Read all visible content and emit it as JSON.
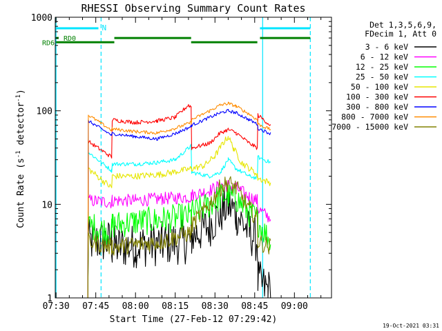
{
  "chart_data": {
    "type": "line",
    "title": "RHESSI Observing Summary Count Rates",
    "xlabel": "Start Time (27-Feb-12 07:29:42)",
    "ylabel_main": "Count Rate (s",
    "ylabel_sup1": "-1",
    "ylabel_mid": " detector",
    "ylabel_sup2": "-1",
    "ylabel_end": ")",
    "yscale": "log",
    "ylim": [
      1,
      1000
    ],
    "xlim": [
      "07:29:42",
      "09:14:00"
    ],
    "x_ticks": [
      {
        "t": "07:30",
        "label": "07:30"
      },
      {
        "t": "07:45",
        "label": "07:45"
      },
      {
        "t": "08:00",
        "label": "08:00"
      },
      {
        "t": "08:15",
        "label": "08:15"
      },
      {
        "t": "08:30",
        "label": "08:30"
      },
      {
        "t": "08:45",
        "label": "08:45"
      },
      {
        "t": "09:00",
        "label": "09:00"
      }
    ],
    "y_ticks": [
      {
        "v": 1,
        "label": "1"
      },
      {
        "v": 10,
        "label": "10"
      },
      {
        "v": 100,
        "label": "100"
      },
      {
        "v": 1000,
        "label": "1000"
      }
    ],
    "legend_header": [
      "Det 1,3,5,6,9,",
      "FDecim 1, Att 0"
    ],
    "legend_position": "right",
    "timestamp": "19-Oct-2021 03:31",
    "night_markers": {
      "color": "#00e5ff",
      "solid_times": [
        "07:30",
        "08:48"
      ],
      "dashed_times": [
        "07:47",
        "09:06"
      ],
      "bars": [
        {
          "from": "07:30",
          "to": "07:46",
          "label": "N"
        },
        {
          "from": "08:47",
          "to": "09:06",
          "label": ""
        }
      ]
    },
    "decim_bars": {
      "color": "#008000",
      "labels": [
        {
          "text": "RD0",
          "value": 600
        },
        {
          "text": "RD6",
          "value": 540
        }
      ],
      "rd0_segments": [
        {
          "from": "07:30",
          "to": "07:31"
        },
        {
          "from": "07:52",
          "to": "08:21"
        },
        {
          "from": "08:47",
          "to": "09:06"
        }
      ],
      "rd6_segments": [
        {
          "from": "07:30",
          "to": "07:52"
        },
        {
          "from": "08:21",
          "to": "08:46"
        }
      ]
    },
    "series": [
      {
        "name": "3 - 6 keV",
        "color": "#000000",
        "noise": 0.55,
        "points": [
          [
            "07:42",
            0
          ],
          [
            "07:42.2",
            4.0
          ],
          [
            "07:51",
            4.0
          ],
          [
            "07:51.2",
            3.5
          ],
          [
            "08:00",
            3.6
          ],
          [
            "08:10",
            3.8
          ],
          [
            "08:21",
            4.0
          ],
          [
            "08:21.2",
            4.5
          ],
          [
            "08:28",
            6.0
          ],
          [
            "08:32",
            8.0
          ],
          [
            "08:35",
            10.0
          ],
          [
            "08:38",
            8.0
          ],
          [
            "08:43",
            5.0
          ],
          [
            "08:46",
            4.0
          ],
          [
            "08:46.2",
            1.5
          ],
          [
            "08:50",
            1.2
          ],
          [
            "08:51",
            0
          ]
        ]
      },
      {
        "name": "6 - 12 keV",
        "color": "#ff00ff",
        "noise": 0.16,
        "points": [
          [
            "07:42",
            0
          ],
          [
            "07:42.2",
            11.0
          ],
          [
            "07:51",
            10.5
          ],
          [
            "07:51.2",
            11.0
          ],
          [
            "08:00",
            11.0
          ],
          [
            "08:10",
            11.5
          ],
          [
            "08:21",
            12.0
          ],
          [
            "08:21.2",
            12.5
          ],
          [
            "08:28",
            14.0
          ],
          [
            "08:32",
            16.0
          ],
          [
            "08:35",
            16.0
          ],
          [
            "08:38",
            15.0
          ],
          [
            "08:43",
            12.0
          ],
          [
            "08:46",
            11.0
          ],
          [
            "08:46.2",
            9.0
          ],
          [
            "08:51",
            7.0
          ]
        ]
      },
      {
        "name": "12 - 25 keV",
        "color": "#00ff00",
        "noise": 0.35,
        "points": [
          [
            "07:42",
            0
          ],
          [
            "07:42.2",
            6.0
          ],
          [
            "07:51",
            5.0
          ],
          [
            "07:51.2",
            6.0
          ],
          [
            "08:00",
            6.5
          ],
          [
            "08:10",
            6.8
          ],
          [
            "08:21",
            7.5
          ],
          [
            "08:21.2",
            8.0
          ],
          [
            "08:28",
            10.0
          ],
          [
            "08:32",
            12.0
          ],
          [
            "08:35",
            12.5
          ],
          [
            "08:38",
            11.5
          ],
          [
            "08:43",
            8.0
          ],
          [
            "08:46",
            7.0
          ],
          [
            "08:46.2",
            6.5
          ],
          [
            "08:51",
            4.0
          ]
        ]
      },
      {
        "name": "25 - 50 keV",
        "color": "#00ffff",
        "noise": 0.05,
        "points": [
          [
            "07:42",
            0
          ],
          [
            "07:42.2",
            36.0
          ],
          [
            "07:51",
            23.0
          ],
          [
            "07:51.2",
            27.0
          ],
          [
            "08:00",
            27.0
          ],
          [
            "08:08",
            28.0
          ],
          [
            "08:15",
            30.0
          ],
          [
            "08:20",
            40.0
          ],
          [
            "08:21",
            42.0
          ],
          [
            "08:21.2",
            22.0
          ],
          [
            "08:28",
            20.0
          ],
          [
            "08:32",
            22.0
          ],
          [
            "08:35",
            30.0
          ],
          [
            "08:38",
            24.0
          ],
          [
            "08:43",
            20.0
          ],
          [
            "08:46",
            19.0
          ],
          [
            "08:46.2",
            32.0
          ],
          [
            "08:51",
            28.0
          ]
        ]
      },
      {
        "name": "50 - 100 keV",
        "color": "#e6e600",
        "noise": 0.08,
        "points": [
          [
            "07:42",
            0
          ],
          [
            "07:42.2",
            24.0
          ],
          [
            "07:51",
            15.0
          ],
          [
            "07:51.2",
            20.0
          ],
          [
            "08:00",
            20.0
          ],
          [
            "08:10",
            21.0
          ],
          [
            "08:21",
            24.0
          ],
          [
            "08:21.2",
            24.0
          ],
          [
            "08:26",
            26.0
          ],
          [
            "08:30",
            33.0
          ],
          [
            "08:33",
            45.0
          ],
          [
            "08:35",
            53.0
          ],
          [
            "08:37",
            40.0
          ],
          [
            "08:40",
            28.0
          ],
          [
            "08:45",
            22.0
          ],
          [
            "08:46",
            20.0
          ],
          [
            "08:46.2",
            19.0
          ],
          [
            "08:51",
            17.0
          ]
        ]
      },
      {
        "name": "100 - 300 keV",
        "color": "#ff0000",
        "noise": 0.05,
        "points": [
          [
            "07:42",
            0
          ],
          [
            "07:42.2",
            47.0
          ],
          [
            "07:51",
            32.0
          ],
          [
            "07:51.2",
            80.0
          ],
          [
            "08:00",
            75.0
          ],
          [
            "08:08",
            78.0
          ],
          [
            "08:15",
            85.0
          ],
          [
            "08:20",
            115.0
          ],
          [
            "08:21",
            110.0
          ],
          [
            "08:21.2",
            40.0
          ],
          [
            "08:28",
            45.0
          ],
          [
            "08:32",
            58.0
          ],
          [
            "08:35",
            63.0
          ],
          [
            "08:38",
            58.0
          ],
          [
            "08:43",
            45.0
          ],
          [
            "08:46",
            40.0
          ],
          [
            "08:46.2",
            90.0
          ],
          [
            "08:51",
            70.0
          ]
        ]
      },
      {
        "name": "300 - 800 keV",
        "color": "#0000ff",
        "noise": 0.04,
        "points": [
          [
            "07:42",
            0
          ],
          [
            "07:42.2",
            78.0
          ],
          [
            "07:51",
            55.0
          ],
          [
            "07:51.2",
            57.0
          ],
          [
            "08:00",
            53.0
          ],
          [
            "08:08",
            50.0
          ],
          [
            "08:15",
            57.0
          ],
          [
            "08:21",
            68.0
          ],
          [
            "08:21.2",
            70.0
          ],
          [
            "08:28",
            85.0
          ],
          [
            "08:32",
            95.0
          ],
          [
            "08:35",
            100.0
          ],
          [
            "08:38",
            95.0
          ],
          [
            "08:43",
            80.0
          ],
          [
            "08:46",
            72.0
          ],
          [
            "08:46.2",
            65.0
          ],
          [
            "08:51",
            57.0
          ]
        ]
      },
      {
        "name": "800 - 7000 keV",
        "color": "#ff8c00",
        "noise": 0.04,
        "points": [
          [
            "07:42",
            0
          ],
          [
            "07:42.2",
            90.0
          ],
          [
            "07:51",
            62.0
          ],
          [
            "07:51.2",
            64.0
          ],
          [
            "08:00",
            60.0
          ],
          [
            "08:08",
            58.0
          ],
          [
            "08:15",
            65.0
          ],
          [
            "08:21",
            75.0
          ],
          [
            "08:21.2",
            80.0
          ],
          [
            "08:28",
            100.0
          ],
          [
            "08:32",
            115.0
          ],
          [
            "08:35",
            120.0
          ],
          [
            "08:38",
            112.0
          ],
          [
            "08:43",
            92.0
          ],
          [
            "08:46",
            80.0
          ],
          [
            "08:46.2",
            72.0
          ],
          [
            "08:51",
            63.0
          ]
        ]
      },
      {
        "name": "7000 - 15000 keV",
        "color": "#808000",
        "noise": 0.22,
        "points": [
          [
            "07:42",
            0
          ],
          [
            "07:42.2",
            4.0
          ],
          [
            "07:51",
            3.5
          ],
          [
            "07:51.2",
            3.5
          ],
          [
            "08:00",
            3.7
          ],
          [
            "08:10",
            4.0
          ],
          [
            "08:21",
            5.0
          ],
          [
            "08:21.2",
            6.0
          ],
          [
            "08:28",
            10.0
          ],
          [
            "08:32",
            15.0
          ],
          [
            "08:35",
            17.0
          ],
          [
            "08:38",
            15.0
          ],
          [
            "08:43",
            9.0
          ],
          [
            "08:46",
            7.0
          ],
          [
            "08:46.2",
            4.0
          ],
          [
            "08:51",
            3.5
          ]
        ]
      }
    ]
  }
}
